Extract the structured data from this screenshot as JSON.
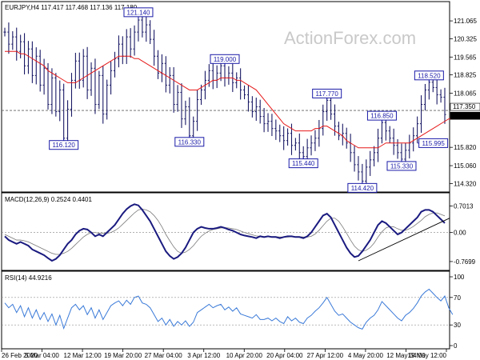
{
  "chart_data": [
    {
      "type": "line",
      "pane": "price",
      "title": "EURJPY,H4  117.417 117.468 117.136 117.180",
      "watermark": "ActionForex.com",
      "ylim": [
        114.1,
        121.4
      ],
      "y_ticks": [
        "121.065",
        "120.325",
        "119.565",
        "118.825",
        "118.065",
        "117.350",
        "117.180",
        "115.820",
        "115.060",
        "114.320"
      ],
      "x_ticks": [
        "26 Feb 2020",
        "5 Mar 04:00",
        "12 Mar 12:00",
        "19 Mar 20:00",
        "27 Mar 04:00",
        "3 Apr 12:00",
        "10 Apr 20:00",
        "20 Apr 04:00",
        "27 Apr 12:00",
        "4 May 20:00",
        "12 May 04:00",
        "19 May 12:00"
      ],
      "series": [
        {
          "color": "#1a1a66",
          "values": [
            120.6,
            120.1,
            120.4,
            119.8,
            120.2,
            119.2,
            119.9,
            118.8,
            119.6,
            118.4,
            119.1,
            117.6,
            118.7,
            117.3,
            118.2,
            116.2,
            117.4,
            118.6,
            119.4,
            118.6,
            119.6,
            118.2,
            119.1,
            117.6,
            118.8,
            117.2,
            118.4,
            119.0,
            119.5,
            120.1,
            119.6,
            120.4,
            119.9,
            120.6,
            121.1,
            120.6,
            120.9,
            120.3,
            119.6,
            118.9,
            119.3,
            118.4,
            118.8,
            117.6,
            118.1,
            117.0,
            117.5,
            116.3,
            116.9,
            117.8,
            118.2,
            118.6,
            119.0,
            118.6,
            118.9,
            119.2,
            118.7,
            118.9,
            118.5,
            118.7,
            118.2,
            118.0,
            117.7,
            117.3,
            117.5,
            117.1,
            116.8,
            116.9,
            116.6,
            116.5,
            116.3,
            116.1,
            116.4,
            115.9,
            116.0,
            115.6,
            115.44,
            115.8,
            116.0,
            116.2,
            116.6,
            117.3,
            117.77,
            117.2,
            116.7,
            116.3,
            116.4,
            116.0,
            115.6,
            115.1,
            114.8,
            114.42,
            115.0,
            115.3,
            115.6,
            116.2,
            116.85,
            116.5,
            116.2,
            115.9,
            115.6,
            115.33,
            115.7,
            116.0,
            116.3,
            116.8,
            117.6,
            118.2,
            118.52,
            118.3,
            118.0,
            117.9,
            117.18
          ]
        },
        {
          "color": "#e61919",
          "values": [
            119.8,
            119.8,
            119.8,
            119.8,
            119.7,
            119.7,
            119.6,
            119.5,
            119.4,
            119.3,
            119.2,
            119.0,
            118.9,
            118.8,
            118.7,
            118.6,
            118.5,
            118.5,
            118.5,
            118.6,
            118.7,
            118.8,
            118.9,
            119.0,
            119.1,
            119.2,
            119.3,
            119.4,
            119.5,
            119.6,
            119.6,
            119.6,
            119.6,
            119.5,
            119.5,
            119.4,
            119.3,
            119.2,
            119.1,
            119.0,
            118.9,
            118.8,
            118.7,
            118.6,
            118.5,
            118.4,
            118.3,
            118.2,
            118.2,
            118.2,
            118.3,
            118.4,
            118.5,
            118.6,
            118.6,
            118.7,
            118.7,
            118.7,
            118.7,
            118.6,
            118.6,
            118.5,
            118.4,
            118.3,
            118.2,
            118.0,
            117.8,
            117.6,
            117.4,
            117.2,
            117.0,
            116.8,
            116.7,
            116.6,
            116.5,
            116.5,
            116.5,
            116.5,
            116.5,
            116.6,
            116.6,
            116.7,
            116.7,
            116.6,
            116.5,
            116.4,
            116.3,
            116.1,
            116.0,
            115.9,
            115.8,
            115.8,
            115.8,
            115.8,
            115.8,
            115.8,
            115.9,
            116.0,
            116.0,
            116.0,
            116.0,
            116.0,
            116.0,
            116.0,
            116.1,
            116.2,
            116.3,
            116.4,
            116.5,
            116.6,
            116.7,
            116.8,
            116.9,
            117.0,
            117.0
          ]
        }
      ],
      "annotations": [
        {
          "text": "121.140",
          "x": 34,
          "y": 121.14,
          "anchor": "above"
        },
        {
          "text": "116.120",
          "x": 15,
          "y": 116.2,
          "anchor": "below"
        },
        {
          "text": "116.330",
          "x": 47,
          "y": 116.33,
          "anchor": "below"
        },
        {
          "text": "119.000",
          "x": 56,
          "y": 119.2,
          "anchor": "above"
        },
        {
          "text": "117.770",
          "x": 82,
          "y": 117.77,
          "anchor": "above"
        },
        {
          "text": "116.850",
          "x": 96,
          "y": 116.85,
          "anchor": "above"
        },
        {
          "text": "115.440",
          "x": 76,
          "y": 115.44,
          "anchor": "below"
        },
        {
          "text": "114.420",
          "x": 91,
          "y": 114.42,
          "anchor": "below"
        },
        {
          "text": "115.330",
          "x": 101,
          "y": 115.33,
          "anchor": "below"
        },
        {
          "text": "115.995",
          "x": 105,
          "y": 115.995,
          "anchor": "right"
        },
        {
          "text": "118.520",
          "x": 108,
          "y": 118.52,
          "anchor": "above"
        }
      ],
      "current_price": 117.18,
      "reference_price": 117.35
    },
    {
      "type": "line",
      "pane": "macd",
      "title": "MACD(12,26,9) 0.2524 0.4401",
      "ylim": [
        -0.92,
        0.82
      ],
      "y_ticks": [
        "0.7013",
        "0.00",
        "-0.7699"
      ],
      "series": [
        {
          "color": "#1a1a80",
          "values": [
            -0.1,
            -0.2,
            -0.25,
            -0.3,
            -0.25,
            -0.3,
            -0.35,
            -0.45,
            -0.5,
            -0.55,
            -0.6,
            -0.68,
            -0.75,
            -0.7,
            -0.6,
            -0.45,
            -0.3,
            -0.2,
            -0.05,
            0.05,
            0.1,
            0.08,
            0.0,
            -0.1,
            -0.05,
            -0.1,
            0.0,
            0.1,
            0.2,
            0.35,
            0.5,
            0.62,
            0.7,
            0.75,
            0.72,
            0.6,
            0.45,
            0.3,
            0.1,
            -0.1,
            -0.3,
            -0.5,
            -0.62,
            -0.7,
            -0.65,
            -0.55,
            -0.4,
            -0.2,
            0.0,
            0.1,
            0.15,
            0.12,
            0.1,
            0.1,
            0.12,
            0.15,
            0.12,
            0.08,
            0.05,
            0.0,
            -0.05,
            -0.08,
            -0.1,
            -0.12,
            -0.15,
            -0.1,
            -0.12,
            -0.1,
            -0.12,
            -0.12,
            -0.15,
            -0.12,
            -0.1,
            -0.1,
            -0.12,
            -0.12,
            -0.15,
            -0.1,
            0.0,
            0.15,
            0.3,
            0.45,
            0.5,
            0.4,
            0.2,
            0.0,
            -0.2,
            -0.4,
            -0.55,
            -0.65,
            -0.62,
            -0.5,
            -0.35,
            -0.2,
            0.0,
            0.2,
            0.3,
            0.25,
            0.15,
            0.05,
            -0.05,
            0.0,
            0.1,
            0.2,
            0.3,
            0.4,
            0.55,
            0.6,
            0.6,
            0.55,
            0.45,
            0.35,
            0.25
          ]
        },
        {
          "color": "#7a7a7a",
          "values": [
            -0.05,
            -0.1,
            -0.15,
            -0.2,
            -0.2,
            -0.22,
            -0.25,
            -0.3,
            -0.35,
            -0.4,
            -0.45,
            -0.5,
            -0.55,
            -0.58,
            -0.58,
            -0.55,
            -0.5,
            -0.42,
            -0.32,
            -0.22,
            -0.12,
            -0.05,
            0.0,
            0.0,
            -0.02,
            -0.02,
            -0.02,
            0.0,
            0.05,
            0.12,
            0.22,
            0.32,
            0.42,
            0.52,
            0.6,
            0.62,
            0.6,
            0.55,
            0.45,
            0.32,
            0.15,
            -0.05,
            -0.22,
            -0.38,
            -0.5,
            -0.55,
            -0.52,
            -0.45,
            -0.35,
            -0.22,
            -0.1,
            -0.02,
            0.04,
            0.08,
            0.1,
            0.12,
            0.13,
            0.12,
            0.1,
            0.08,
            0.04,
            0.0,
            -0.03,
            -0.06,
            -0.09,
            -0.1,
            -0.11,
            -0.11,
            -0.11,
            -0.11,
            -0.12,
            -0.12,
            -0.12,
            -0.11,
            -0.11,
            -0.11,
            -0.12,
            -0.12,
            -0.1,
            -0.04,
            0.06,
            0.18,
            0.3,
            0.38,
            0.38,
            0.3,
            0.15,
            -0.02,
            -0.2,
            -0.36,
            -0.46,
            -0.5,
            -0.47,
            -0.4,
            -0.28,
            -0.12,
            0.02,
            0.12,
            0.16,
            0.15,
            0.1,
            0.06,
            0.06,
            0.1,
            0.16,
            0.24,
            0.32,
            0.42,
            0.48,
            0.52,
            0.52,
            0.48,
            0.44
          ]
        }
      ],
      "trendline": {
        "x": [
          90,
          113
        ],
        "y": [
          -0.75,
          0.25
        ]
      }
    },
    {
      "type": "line",
      "pane": "rsi",
      "title": "RSI(14) 44.9216",
      "ylim": [
        0,
        100
      ],
      "y_ticks": [
        "100",
        "70",
        "30",
        "0"
      ],
      "levels": [
        70,
        30
      ],
      "series": [
        {
          "color": "#3a7ad8",
          "values": [
            62,
            55,
            60,
            48,
            58,
            42,
            55,
            40,
            52,
            38,
            48,
            35,
            46,
            30,
            44,
            25,
            40,
            55,
            60,
            52,
            58,
            45,
            55,
            40,
            52,
            38,
            48,
            58,
            62,
            65,
            58,
            66,
            60,
            70,
            72,
            62,
            60,
            55,
            45,
            35,
            40,
            30,
            38,
            28,
            35,
            30,
            36,
            28,
            34,
            48,
            52,
            56,
            60,
            55,
            58,
            60,
            52,
            56,
            50,
            55,
            46,
            44,
            42,
            40,
            45,
            38,
            38,
            40,
            36,
            40,
            35,
            32,
            42,
            36,
            40,
            34,
            32,
            40,
            44,
            50,
            55,
            62,
            70,
            60,
            50,
            44,
            46,
            40,
            34,
            30,
            26,
            24,
            34,
            40,
            44,
            52,
            64,
            58,
            52,
            46,
            40,
            36,
            44,
            48,
            54,
            62,
            72,
            78,
            82,
            76,
            70,
            65,
            72,
            55,
            45
          ]
        }
      ]
    }
  ]
}
